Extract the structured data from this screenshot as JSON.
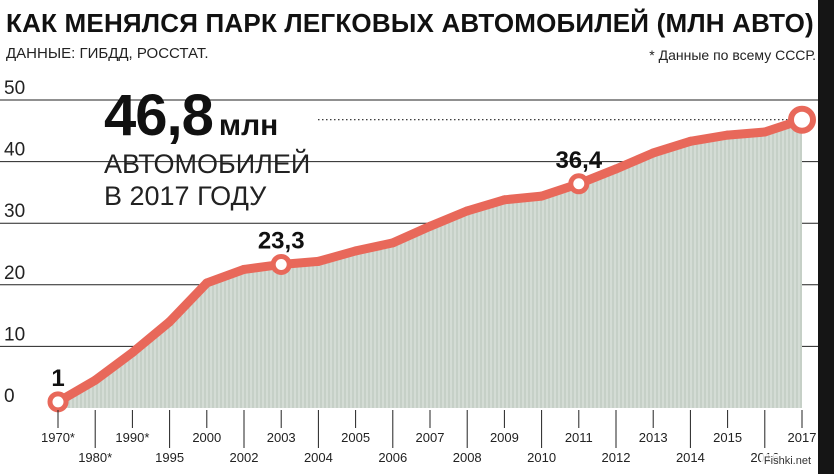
{
  "header": {
    "title": "КАК МЕНЯЛСЯ ПАРК ЛЕГКОВЫХ АВТОМОБИЛЕЙ (МЛН АВТО)",
    "source": "ДАННЫЕ: ГИБДД, РОССТАТ.",
    "footnote": "* Данные по всему СССР."
  },
  "headline": {
    "value": "46,8",
    "unit": "млн",
    "caption": "АВТОМОБИЛЕЙ\nВ 2017 ГОДУ"
  },
  "watermark": "Fishki.net",
  "chart_data": {
    "type": "area",
    "title": "КАК МЕНЯЛСЯ ПАРК ЛЕГКОВЫХ АВТОМОБИЛЕЙ (МЛН АВТО)",
    "xlabel": "",
    "ylabel": "",
    "ylim": [
      0,
      50
    ],
    "yticks": [
      "0",
      "10",
      "20",
      "30",
      "40",
      "50"
    ],
    "grid": true,
    "categories": [
      "1970*",
      "1980*",
      "1990*",
      "1995",
      "2000",
      "2002",
      "2003",
      "2004",
      "2005",
      "2006",
      "2007",
      "2008",
      "2009",
      "2010",
      "2011",
      "2012",
      "2013",
      "2014",
      "2015",
      "2016",
      "2017"
    ],
    "values": [
      1,
      4.5,
      9,
      14,
      20.3,
      22.5,
      23.3,
      23.8,
      25.5,
      26.8,
      29.5,
      32,
      33.8,
      34.4,
      36.4,
      38.8,
      41.4,
      43.3,
      44.3,
      44.8,
      46.8
    ],
    "highlighted": [
      {
        "category": "1970*",
        "label": "1"
      },
      {
        "category": "2003",
        "label": "23,3"
      },
      {
        "category": "2011",
        "label": "36,4"
      },
      {
        "category": "2017",
        "label": ""
      }
    ],
    "colors": {
      "line": "#e8685a",
      "fill": "#d4dcd5",
      "hatch": "#b7c3b9",
      "grid": "#222222"
    }
  }
}
